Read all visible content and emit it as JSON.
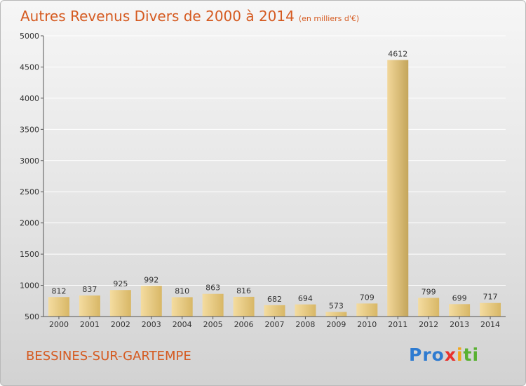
{
  "header": {
    "title": "Autres Revenus Divers de 2000 à 2014",
    "subtitle": "(en milliers d'€)"
  },
  "footer": {
    "location": "BESSINES-SUR-GARTEMPE",
    "logo": [
      "Pro",
      "x",
      "i",
      "ti"
    ]
  },
  "colors": {
    "title": "#d55a20",
    "bar_light": "#f4dca0",
    "bar_dark": "#d8b766",
    "bar_highlight_light": "#f2d79a",
    "bar_highlight_dark": "#c4a55a",
    "axis": "#555555",
    "grid": "#ffffff"
  },
  "chart_data": {
    "type": "bar",
    "title": "Autres Revenus Divers de 2000 à 2014",
    "subtitle": "(en milliers d'€)",
    "categories": [
      "2000",
      "2001",
      "2002",
      "2003",
      "2004",
      "2005",
      "2006",
      "2007",
      "2008",
      "2009",
      "2010",
      "2011",
      "2012",
      "2013",
      "2014"
    ],
    "values": [
      812,
      837,
      925,
      992,
      810,
      863,
      816,
      682,
      694,
      573,
      709,
      4612,
      799,
      699,
      717
    ],
    "ylim": [
      500,
      5000
    ],
    "yticks": [
      500,
      1000,
      1500,
      2000,
      2500,
      3000,
      3500,
      4000,
      4500,
      5000
    ],
    "grid": true,
    "legend": "none",
    "data_labels": true
  }
}
